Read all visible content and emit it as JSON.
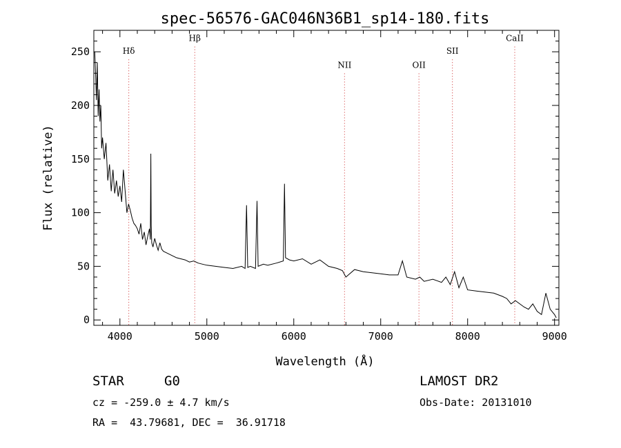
{
  "chart_data": {
    "type": "line",
    "title": "spec-56576-GAC046N36B1_sp14-180.fits",
    "xlabel": "Wavelength (Å)",
    "ylabel": "Flux (relative)",
    "xlim": [
      3700,
      9050
    ],
    "ylim": [
      -5,
      270
    ],
    "x_ticks": [
      4000,
      5000,
      6000,
      7000,
      8000,
      9000
    ],
    "y_ticks": [
      0,
      50,
      100,
      150,
      200,
      250
    ],
    "grid": false,
    "line_color": "#000000",
    "marker_color": "#cc2222",
    "emission_lines": [
      {
        "label": "Hδ",
        "x": 4102,
        "label_y": 248
      },
      {
        "label": "Hβ",
        "x": 4861,
        "label_y": 260
      },
      {
        "label": "NII",
        "x": 6584,
        "label_y": 235
      },
      {
        "label": "OII",
        "x": 7440,
        "label_y": 235
      },
      {
        "label": "SII",
        "x": 7825,
        "label_y": 248
      },
      {
        "label": "CaII",
        "x": 8542,
        "label_y": 260
      }
    ],
    "series": [
      {
        "x": [
          3710,
          3720,
          3730,
          3740,
          3750,
          3760,
          3770,
          3780,
          3790,
          3800,
          3820,
          3840,
          3860,
          3880,
          3900,
          3920,
          3940,
          3960,
          3980,
          4000,
          4020,
          4040,
          4060,
          4080,
          4100,
          4120,
          4140,
          4160,
          4180,
          4200,
          4220,
          4240,
          4260,
          4280,
          4300,
          4320,
          4340,
          4350,
          4356,
          4360,
          4366,
          4380,
          4400,
          4420,
          4440,
          4460,
          4480,
          4500,
          4550,
          4600,
          4650,
          4700,
          4750,
          4800,
          4850,
          4900,
          4950,
          5000,
          5100,
          5200,
          5300,
          5400,
          5440,
          5457,
          5470,
          5500,
          5560,
          5577,
          5590,
          5650,
          5700,
          5800,
          5880,
          5893,
          5905,
          5950,
          6000,
          6100,
          6200,
          6300,
          6400,
          6500,
          6560,
          6600,
          6700,
          6800,
          6900,
          7000,
          7100,
          7200,
          7250,
          7300,
          7400,
          7450,
          7500,
          7600,
          7700,
          7750,
          7800,
          7850,
          7900,
          7950,
          8000,
          8100,
          8200,
          8300,
          8400,
          8450,
          8500,
          8550,
          8600,
          8650,
          8700,
          8750,
          8800,
          8850,
          8900,
          8950,
          9000,
          9020
        ],
        "y": [
          250,
          230,
          205,
          240,
          190,
          215,
          185,
          200,
          160,
          170,
          150,
          165,
          130,
          145,
          120,
          140,
          118,
          130,
          115,
          125,
          110,
          140,
          120,
          100,
          108,
          102,
          95,
          90,
          88,
          85,
          80,
          90,
          75,
          82,
          70,
          78,
          85,
          75,
          155,
          88,
          72,
          68,
          76,
          70,
          65,
          72,
          66,
          64,
          62,
          60,
          58,
          57,
          56,
          54,
          55,
          53,
          52,
          51,
          50,
          49,
          48,
          50,
          48,
          107,
          49,
          50,
          48,
          111,
          50,
          52,
          51,
          53,
          55,
          127,
          58,
          56,
          55,
          57,
          52,
          56,
          50,
          48,
          46,
          40,
          47,
          45,
          44,
          43,
          42,
          42,
          55,
          40,
          38,
          40,
          36,
          38,
          35,
          40,
          33,
          45,
          30,
          40,
          28,
          27,
          26,
          25,
          22,
          20,
          15,
          18,
          15,
          12,
          10,
          15,
          8,
          5,
          25,
          10,
          5,
          2
        ]
      }
    ]
  },
  "info": {
    "object_class": "STAR",
    "subclass": "G0",
    "survey": "LAMOST DR2",
    "cz": "cz = -259.0 ± 4.7 km/s",
    "obs_date": "Obs-Date: 20131010",
    "coords": "RA =  43.79681, DEC =  36.91718"
  }
}
